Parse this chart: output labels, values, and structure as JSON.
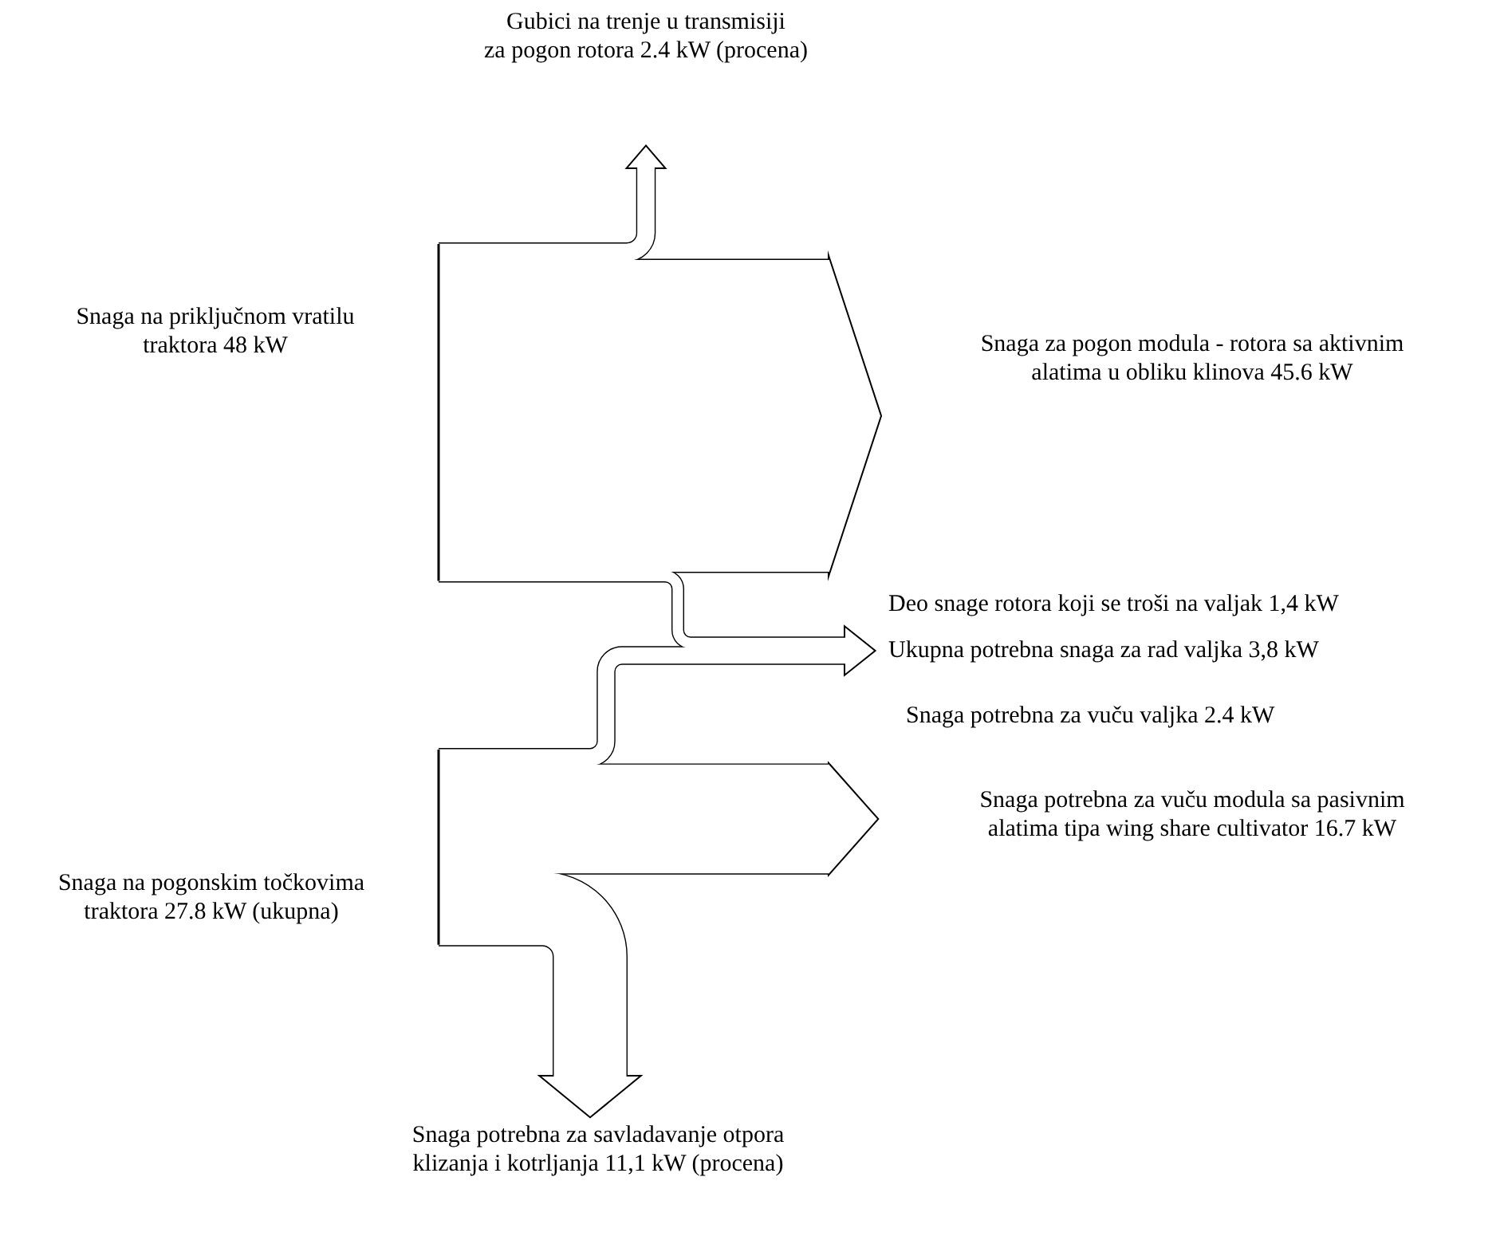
{
  "chart_data": {
    "type": "other",
    "categories": [
      "Gubici na trenje u transmisiji\nza pogon rotora",
      "Snaga na priključnom vratilu\ntraktora ",
      "Snaga za pogon modula - rotora sa aktivnim\nalatima u obliku klinova",
      "Deo snage rotora koji se troši na valjak",
      "Ukupna potrebna snaga za rad valjka",
      "Snaga potrebna za vuču valjka",
      "Snaga na pogonskim točkovima\ntraktora",
      "Snaga potrebna za vuču modula sa pasivnim\nalatima tipa wing share cultivator",
      "Snaga potrebna za savladavanje otpora\nklizanja i kotrljanja"
    ],
    "values": [
      2.4,
      48,
      45.6,
      1.4,
      3.8,
      2.4,
      27.8,
      16.7,
      11.1
    ],
    "value_labels": [
      "2.4 kW (procena)",
      "48 kW",
      "45.6 kW",
      "1,4 kW",
      "3,8 kW",
      "2.4 kW",
      "27.8 kW (ukupna)",
      "16.7 kW",
      "11,1 kW (procena)"
    ]
  }
}
